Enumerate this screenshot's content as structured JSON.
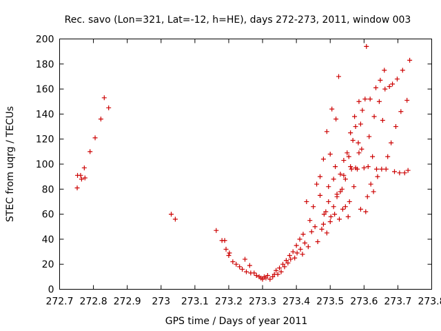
{
  "chart_data": {
    "type": "scatter",
    "title": "Rec. savo (Lon=321, Lat=-12, h=HE), days 272-273, 2011, window 003",
    "xlabel": "GPS time / Days of year 2011",
    "ylabel": "STEC from uqrg / TECUs",
    "xlim": [
      272.7,
      273.8
    ],
    "ylim": [
      0,
      200
    ],
    "xticks": [
      "272.7",
      "272.8",
      "272.9",
      "273",
      "273.1",
      "273.2",
      "273.3",
      "273.4",
      "273.5",
      "273.6",
      "273.7",
      "273.8"
    ],
    "yticks": [
      "0",
      "20",
      "40",
      "60",
      "80",
      "100",
      "120",
      "140",
      "160",
      "180",
      "200"
    ],
    "grid": false,
    "marker": "+",
    "color": "#cc0000",
    "points": [
      [
        272.752,
        81
      ],
      [
        272.753,
        91
      ],
      [
        272.762,
        91
      ],
      [
        272.765,
        88
      ],
      [
        272.773,
        97
      ],
      [
        272.775,
        89
      ],
      [
        272.79,
        110
      ],
      [
        272.805,
        121
      ],
      [
        272.822,
        136
      ],
      [
        272.832,
        153
      ],
      [
        272.845,
        145
      ],
      [
        273.03,
        60
      ],
      [
        273.042,
        56
      ],
      [
        273.163,
        47
      ],
      [
        273.18,
        39
      ],
      [
        273.188,
        39
      ],
      [
        273.192,
        32
      ],
      [
        273.2,
        27
      ],
      [
        273.202,
        29
      ],
      [
        273.212,
        22
      ],
      [
        273.222,
        20
      ],
      [
        273.232,
        18
      ],
      [
        273.24,
        16
      ],
      [
        273.248,
        24
      ],
      [
        273.252,
        14
      ],
      [
        273.262,
        19
      ],
      [
        273.265,
        13
      ],
      [
        273.275,
        13
      ],
      [
        273.282,
        11
      ],
      [
        273.29,
        10
      ],
      [
        273.295,
        9
      ],
      [
        273.3,
        8
      ],
      [
        273.305,
        10
      ],
      [
        273.31,
        9
      ],
      [
        273.315,
        11
      ],
      [
        273.322,
        8
      ],
      [
        273.33,
        10
      ],
      [
        273.335,
        12
      ],
      [
        273.34,
        15
      ],
      [
        273.345,
        12
      ],
      [
        273.35,
        17
      ],
      [
        273.355,
        14
      ],
      [
        273.36,
        20
      ],
      [
        273.365,
        18
      ],
      [
        273.37,
        23
      ],
      [
        273.375,
        21
      ],
      [
        273.38,
        27
      ],
      [
        273.383,
        24
      ],
      [
        273.39,
        30
      ],
      [
        273.395,
        25
      ],
      [
        273.4,
        35
      ],
      [
        273.402,
        29
      ],
      [
        273.41,
        40
      ],
      [
        273.412,
        32
      ],
      [
        273.418,
        28
      ],
      [
        273.42,
        44
      ],
      [
        273.425,
        37
      ],
      [
        273.43,
        70
      ],
      [
        273.435,
        34
      ],
      [
        273.44,
        55
      ],
      [
        273.445,
        46
      ],
      [
        273.45,
        66
      ],
      [
        273.455,
        50
      ],
      [
        273.46,
        84
      ],
      [
        273.463,
        38
      ],
      [
        273.47,
        75
      ],
      [
        273.475,
        48
      ],
      [
        273.48,
        104
      ],
      [
        273.482,
        60
      ],
      [
        273.487,
        62
      ],
      [
        273.49,
        126
      ],
      [
        273.495,
        70
      ],
      [
        273.5,
        108
      ],
      [
        273.502,
        58
      ],
      [
        273.505,
        144
      ],
      [
        273.51,
        88
      ],
      [
        273.513,
        60
      ],
      [
        273.517,
        136
      ],
      [
        273.52,
        76
      ],
      [
        273.525,
        170
      ],
      [
        273.527,
        56
      ],
      [
        273.53,
        92
      ],
      [
        273.535,
        80
      ],
      [
        273.537,
        64
      ],
      [
        273.54,
        103
      ],
      [
        273.545,
        88
      ],
      [
        273.55,
        109
      ],
      [
        273.553,
        58
      ],
      [
        273.557,
        70
      ],
      [
        273.56,
        125
      ],
      [
        273.563,
        96
      ],
      [
        273.567,
        119
      ],
      [
        273.57,
        82
      ],
      [
        273.572,
        138
      ],
      [
        273.575,
        130
      ],
      [
        273.58,
        96
      ],
      [
        273.583,
        117
      ],
      [
        273.585,
        150
      ],
      [
        273.59,
        132
      ],
      [
        273.593,
        112
      ],
      [
        273.595,
        143
      ],
      [
        273.6,
        97
      ],
      [
        273.603,
        152
      ],
      [
        273.607,
        194
      ],
      [
        273.61,
        74
      ],
      [
        273.612,
        98
      ],
      [
        273.615,
        122
      ],
      [
        273.618,
        152
      ],
      [
        273.62,
        84
      ],
      [
        273.625,
        106
      ],
      [
        273.628,
        78
      ],
      [
        273.63,
        138
      ],
      [
        273.635,
        161
      ],
      [
        273.637,
        96
      ],
      [
        273.64,
        90
      ],
      [
        273.645,
        150
      ],
      [
        273.648,
        167
      ],
      [
        273.652,
        96
      ],
      [
        273.655,
        135
      ],
      [
        273.66,
        175
      ],
      [
        273.662,
        160
      ],
      [
        273.665,
        96
      ],
      [
        273.67,
        106
      ],
      [
        273.675,
        162
      ],
      [
        273.68,
        117
      ],
      [
        273.684,
        164
      ],
      [
        273.69,
        94
      ],
      [
        273.694,
        130
      ],
      [
        273.698,
        168
      ],
      [
        273.705,
        93
      ],
      [
        273.709,
        142
      ],
      [
        273.714,
        175
      ],
      [
        273.72,
        93
      ],
      [
        273.727,
        151
      ],
      [
        273.73,
        95
      ],
      [
        273.735,
        183
      ],
      [
        273.48,
        52
      ],
      [
        273.49,
        45
      ],
      [
        273.5,
        54
      ],
      [
        273.51,
        66
      ],
      [
        273.52,
        74
      ],
      [
        273.53,
        78
      ],
      [
        273.545,
        66
      ],
      [
        273.56,
        98
      ],
      [
        273.575,
        97
      ],
      [
        273.59,
        64
      ],
      [
        273.605,
        62
      ],
      [
        273.47,
        90
      ],
      [
        273.495,
        82
      ],
      [
        273.515,
        98
      ],
      [
        273.54,
        91
      ],
      [
        273.555,
        106
      ],
      [
        273.585,
        109
      ]
    ]
  }
}
